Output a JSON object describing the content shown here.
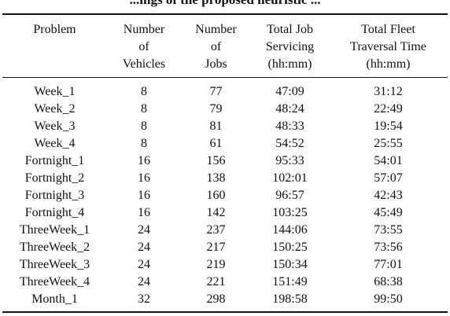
{
  "caption_fragment": "...ings of the proposed heuristic ...",
  "table": {
    "headers": [
      [
        "Problem"
      ],
      [
        "Number",
        "of",
        "Vehicles"
      ],
      [
        "Number",
        "of",
        "Jobs"
      ],
      [
        "Total Job",
        "Servicing",
        "(hh:mm)"
      ],
      [
        "Total Fleet",
        "Traversal Time",
        "(hh:mm)"
      ]
    ],
    "rows": [
      [
        "Week_1",
        "8",
        "77",
        "47:09",
        "31:12"
      ],
      [
        "Week_2",
        "8",
        "79",
        "48:24",
        "22:49"
      ],
      [
        "Week_3",
        "8",
        "81",
        "48:33",
        "19:54"
      ],
      [
        "Week_4",
        "8",
        "61",
        "54:52",
        "25:55"
      ],
      [
        "Fortnight_1",
        "16",
        "156",
        "95:33",
        "54:01"
      ],
      [
        "Fortnight_2",
        "16",
        "138",
        "102:01",
        "57:07"
      ],
      [
        "Fortnight_3",
        "16",
        "160",
        "96:57",
        "42:43"
      ],
      [
        "Fortnight_4",
        "16",
        "142",
        "103:25",
        "45:49"
      ],
      [
        "ThreeWeek_1",
        "24",
        "237",
        "144:06",
        "73:55"
      ],
      [
        "ThreeWeek_2",
        "24",
        "217",
        "150:25",
        "73:56"
      ],
      [
        "ThreeWeek_3",
        "24",
        "219",
        "150:34",
        "77:01"
      ],
      [
        "ThreeWeek_4",
        "24",
        "221",
        "151:49",
        "68:38"
      ],
      [
        "Month_1",
        "32",
        "298",
        "198:58",
        "99:50"
      ]
    ]
  }
}
